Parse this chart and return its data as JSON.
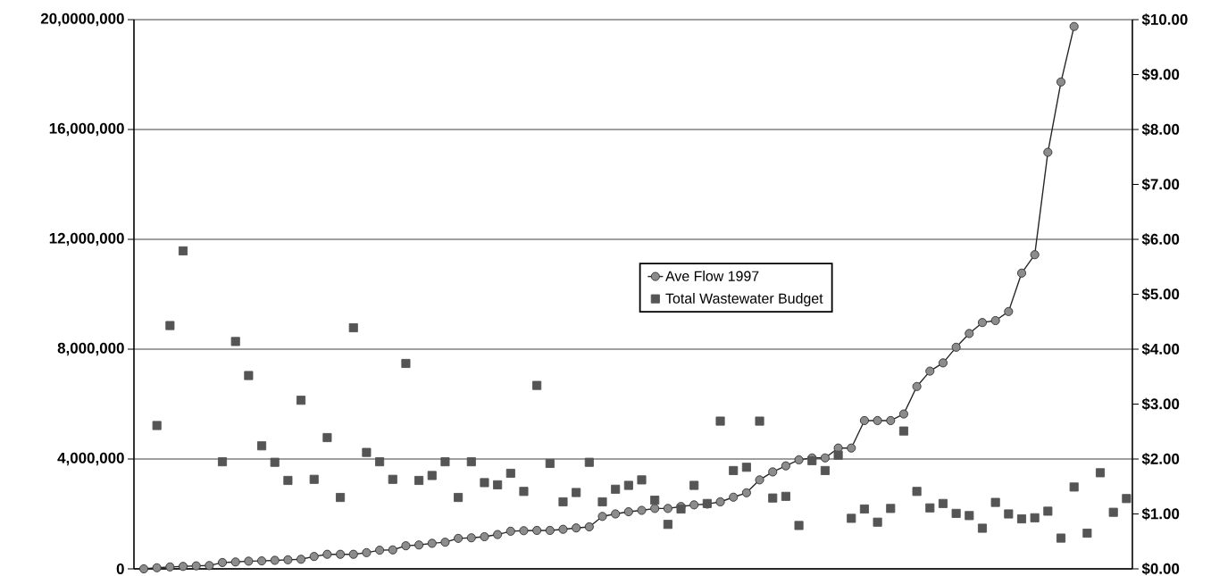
{
  "chart_data": {
    "type": "line",
    "categories": [
      null,
      null,
      null,
      null,
      null,
      null,
      null,
      null,
      null,
      null,
      null,
      null,
      null,
      null,
      null,
      null,
      null,
      null,
      null,
      null,
      null,
      null,
      null,
      null,
      null,
      null,
      null,
      null,
      null,
      null,
      null,
      null,
      null,
      null,
      null,
      null,
      null,
      null,
      null,
      null,
      null,
      null,
      null,
      null,
      null,
      null,
      null,
      null,
      null,
      null,
      null,
      null,
      null,
      null,
      null,
      null,
      null,
      null,
      null,
      null,
      null,
      null,
      null,
      null,
      null,
      null,
      null,
      null,
      null,
      null,
      null,
      null,
      null,
      null,
      null,
      null
    ],
    "series": [
      {
        "name": "Ave Flow 1997",
        "color": "#8c8c8c",
        "marker": "circle",
        "line_style": "solid",
        "values": [
          0,
          40000,
          70000,
          90000,
          110000,
          120000,
          230000,
          250000,
          280000,
          290000,
          310000,
          330000,
          350000,
          450000,
          530000,
          530000,
          530000,
          590000,
          680000,
          690000,
          840000,
          870000,
          930000,
          970000,
          1110000,
          1130000,
          1170000,
          1250000,
          1370000,
          1390000,
          1400000,
          1400000,
          1440000,
          1490000,
          1530000,
          1910000,
          2000000,
          2080000,
          2130000,
          2200000,
          2200000,
          2270000,
          2330000,
          2360000,
          2440000,
          2610000,
          2770000,
          3240000,
          3530000,
          3750000,
          3970000,
          4040000,
          4040000,
          4400000,
          4400000,
          5400000,
          5400000,
          5400000,
          5640000,
          6640000,
          7200000,
          7500000,
          8070000,
          8570000,
          8970000,
          9040000,
          9370000,
          10770000,
          11440000,
          15170000,
          17730000,
          19750000,
          null,
          null,
          null,
          null
        ]
      },
      {
        "name": "Total Wastewater Budget",
        "type": "scatter",
        "axis": "y2",
        "color": "#555555",
        "marker": "square",
        "values": [
          null,
          2.61,
          4.43,
          5.79,
          null,
          null,
          1.95,
          4.14,
          3.52,
          2.24,
          1.94,
          1.61,
          3.07,
          1.63,
          2.39,
          1.3,
          4.39,
          2.12,
          1.95,
          1.63,
          3.74,
          1.61,
          1.7,
          1.95,
          1.3,
          1.95,
          1.57,
          1.53,
          1.74,
          1.41,
          3.34,
          1.92,
          1.22,
          1.39,
          1.94,
          1.22,
          1.45,
          1.52,
          1.62,
          1.25,
          0.81,
          1.09,
          1.52,
          1.19,
          2.69,
          1.79,
          1.85,
          2.69,
          1.29,
          1.32,
          0.79,
          1.97,
          1.79,
          2.07,
          0.92,
          1.09,
          0.85,
          1.1,
          2.51,
          1.41,
          1.11,
          1.19,
          1.01,
          0.97,
          0.74,
          1.21,
          1.0,
          0.91,
          0.93,
          1.05,
          0.56,
          1.49,
          0.65,
          1.75,
          1.03,
          1.28
        ]
      }
    ],
    "ylim": [
      0,
      20000000
    ],
    "yticks": [
      {
        "value": 0,
        "label": "0"
      },
      {
        "value": 4000000,
        "label": "4,000,000"
      },
      {
        "value": 8000000,
        "label": "8,000,000"
      },
      {
        "value": 12000000,
        "label": "12,000,000"
      },
      {
        "value": 16000000,
        "label": "16,000,000"
      },
      {
        "value": 20000000,
        "label": "20,0000,000"
      }
    ],
    "y2lim": [
      0,
      10
    ],
    "y2ticks": [
      {
        "value": 0,
        "label": "$0.00"
      },
      {
        "value": 1,
        "label": "$1.00"
      },
      {
        "value": 2,
        "label": "$2.00"
      },
      {
        "value": 3,
        "label": "$3.00"
      },
      {
        "value": 4,
        "label": "$4.00"
      },
      {
        "value": 5,
        "label": "$5.00"
      },
      {
        "value": 6,
        "label": "$6.00"
      },
      {
        "value": 7,
        "label": "$7.00"
      },
      {
        "value": 8,
        "label": "$8.00"
      },
      {
        "value": 9,
        "label": "$9.00"
      },
      {
        "value": 10,
        "label": "$10.00"
      }
    ],
    "grid": "y",
    "legend": "center"
  }
}
